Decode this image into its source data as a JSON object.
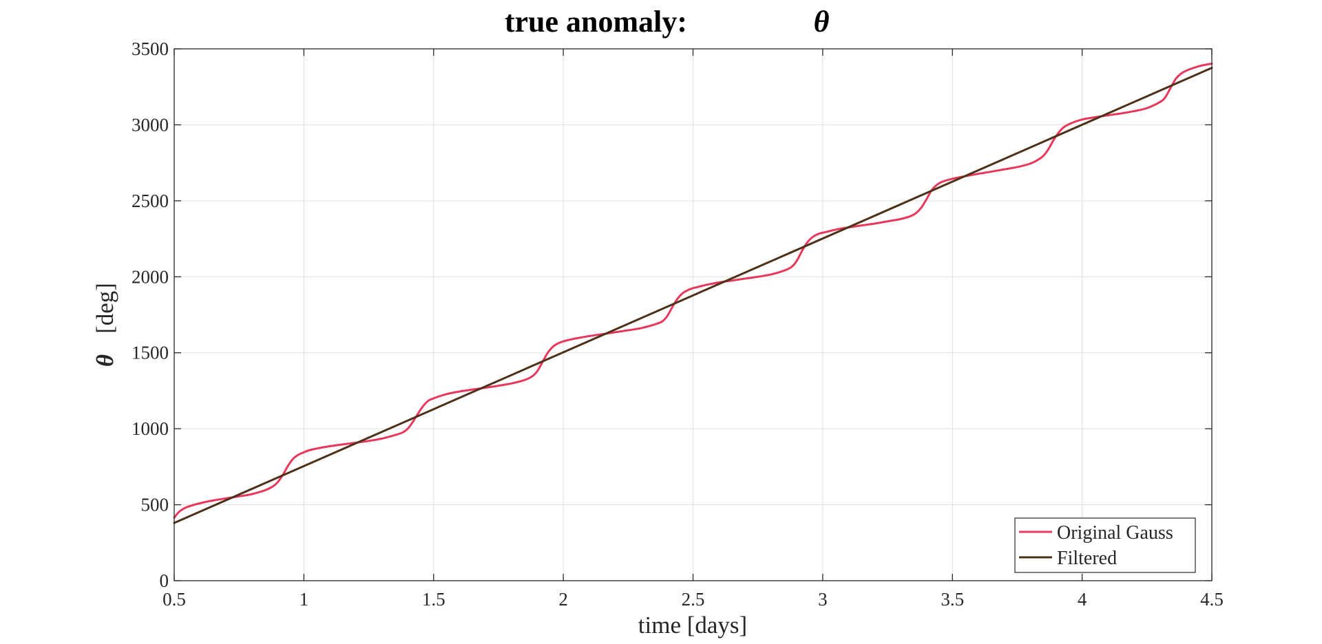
{
  "chart_data": {
    "type": "line",
    "title": "true anomaly:",
    "title_symbol": "θ",
    "xlabel": "time [days]",
    "ylabel_symbol": "θ",
    "ylabel": "[deg]",
    "xlim": [
      0.5,
      4.5
    ],
    "ylim": [
      0,
      3500
    ],
    "x_ticks": [
      0.5,
      1,
      1.5,
      2,
      2.5,
      3,
      3.5,
      4,
      4.5
    ],
    "x_tick_labels": [
      "0.5",
      "1",
      "1.5",
      "2",
      "2.5",
      "3",
      "3.5",
      "4",
      "4.5"
    ],
    "y_ticks": [
      0,
      500,
      1000,
      1500,
      2000,
      2500,
      3000,
      3500
    ],
    "y_tick_labels": [
      "0",
      "500",
      "1000",
      "1500",
      "2000",
      "2500",
      "3000",
      "3500"
    ],
    "grid": true,
    "legend_position": "bottom-right",
    "series": [
      {
        "name": "Original Gauss",
        "color": "#e8375a",
        "x": [
          0.5,
          0.52,
          0.55,
          0.6,
          0.65,
          0.7,
          0.75,
          0.8,
          0.85,
          0.88,
          0.9,
          0.92,
          0.94,
          0.96,
          0.98,
          1.0,
          1.02,
          1.05,
          1.1,
          1.15,
          1.2,
          1.25,
          1.3,
          1.35,
          1.38,
          1.4,
          1.42,
          1.44,
          1.46,
          1.48,
          1.5,
          1.53,
          1.56,
          1.6,
          1.65,
          1.7,
          1.75,
          1.8,
          1.85,
          1.88,
          1.9,
          1.92,
          1.94,
          1.96,
          1.98,
          2.0,
          2.03,
          2.06,
          2.1,
          2.15,
          2.2,
          2.25,
          2.3,
          2.35,
          2.38,
          2.4,
          2.42,
          2.44,
          2.46,
          2.48,
          2.5,
          2.53,
          2.56,
          2.6,
          2.65,
          2.7,
          2.75,
          2.8,
          2.85,
          2.88,
          2.9,
          2.92,
          2.94,
          2.96,
          2.98,
          3.0,
          3.03,
          3.06,
          3.1,
          3.15,
          3.2,
          3.25,
          3.3,
          3.34,
          3.36,
          3.38,
          3.4,
          3.42,
          3.44,
          3.46,
          3.5,
          3.55,
          3.6,
          3.65,
          3.7,
          3.75,
          3.8,
          3.83,
          3.85,
          3.87,
          3.89,
          3.91,
          3.93,
          3.96,
          4.0,
          4.05,
          4.1,
          4.15,
          4.2,
          4.25,
          4.3,
          4.32,
          4.34,
          4.36,
          4.38,
          4.4,
          4.43,
          4.46,
          4.5
        ],
        "y": [
          415,
          455,
          485,
          510,
          528,
          542,
          555,
          570,
          595,
          620,
          650,
          700,
          760,
          805,
          830,
          845,
          858,
          870,
          885,
          897,
          908,
          920,
          935,
          958,
          975,
          1000,
          1045,
          1100,
          1150,
          1185,
          1200,
          1218,
          1232,
          1245,
          1258,
          1270,
          1283,
          1298,
          1320,
          1345,
          1380,
          1440,
          1500,
          1540,
          1562,
          1575,
          1588,
          1598,
          1610,
          1622,
          1635,
          1648,
          1662,
          1685,
          1705,
          1740,
          1800,
          1855,
          1892,
          1912,
          1925,
          1938,
          1950,
          1963,
          1975,
          1988,
          2000,
          2015,
          2040,
          2065,
          2105,
          2170,
          2225,
          2260,
          2280,
          2290,
          2302,
          2314,
          2325,
          2338,
          2350,
          2365,
          2380,
          2400,
          2420,
          2455,
          2510,
          2570,
          2605,
          2625,
          2645,
          2662,
          2678,
          2692,
          2707,
          2722,
          2745,
          2770,
          2795,
          2840,
          2900,
          2950,
          2985,
          3012,
          3035,
          3050,
          3063,
          3075,
          3090,
          3110,
          3150,
          3180,
          3240,
          3300,
          3335,
          3355,
          3375,
          3390,
          3403
        ]
      },
      {
        "name": "Filtered",
        "color": "#4d3018",
        "x": [
          0.5,
          4.5
        ],
        "y": [
          380,
          3375
        ]
      }
    ]
  }
}
